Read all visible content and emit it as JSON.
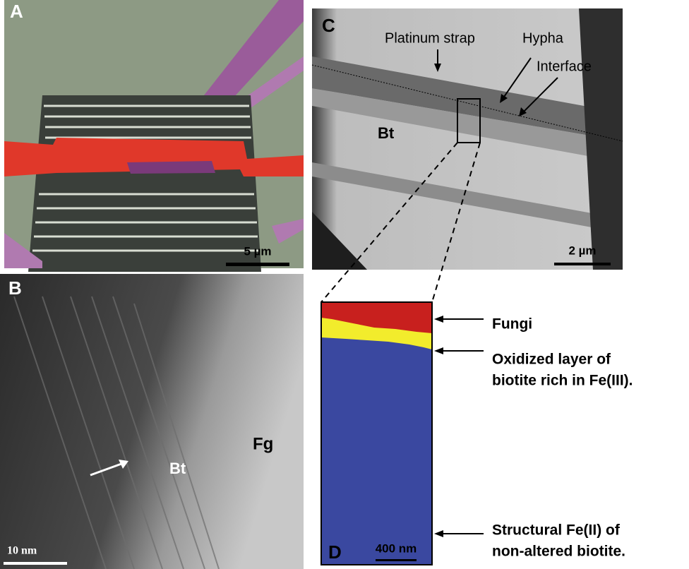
{
  "panels": {
    "A": {
      "label": "A",
      "scale_bar": "5 µm"
    },
    "B": {
      "label": "B",
      "scale_bar": "10 nm",
      "labels": [
        "Bt",
        "Fg"
      ]
    },
    "C": {
      "label": "C",
      "scale_bar": "2 µm",
      "labels": [
        "Platinum strap",
        "Hypha",
        "Interface",
        "Bt"
      ]
    },
    "D": {
      "label": "D",
      "scale_bar": "400 nm",
      "legend": [
        {
          "lines": [
            "Fungi"
          ]
        },
        {
          "lines": [
            "Oxidized layer of",
            "biotite rich in Fe(III)."
          ]
        },
        {
          "lines": [
            "Structural Fe(II) of",
            "non-altered biotite."
          ]
        }
      ]
    }
  }
}
